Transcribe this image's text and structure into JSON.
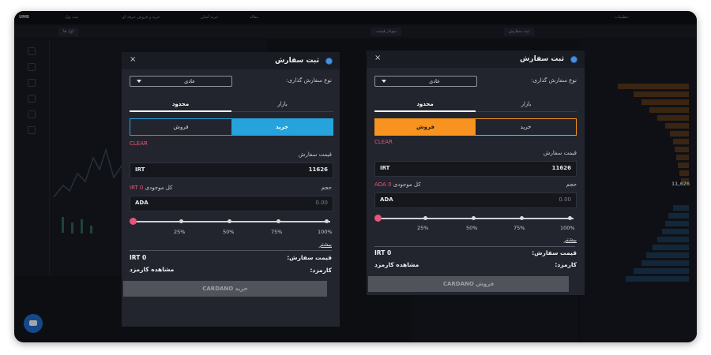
{
  "background": {
    "topbar": {
      "brand": "UMB",
      "items": [
        "ثبت پول",
        "خرید و فروش حرفه ای",
        "خرید آسان",
        "مقاله"
      ],
      "right": "تنظیمات"
    },
    "tab": "اول ها",
    "chart_tabs": {
      "depth": "نمودار قیمت",
      "order": "ثبت سفارش"
    },
    "price": "11,626",
    "colors": {
      "ask": "#e08a25",
      "bid": "#2b8fd6"
    }
  },
  "sell_modal": {
    "title": "ثبت سفارش",
    "close": "×",
    "order_type_label": "نوع سفارش گذاری:",
    "order_type_value": "عادی",
    "tabs": {
      "market": "بازار",
      "limit": "محدود"
    },
    "sides": {
      "buy": "خرید",
      "sell": "فروش"
    },
    "active_side": "sell",
    "accent": "#f7931e",
    "clear": "CLEAR",
    "price_label": "قیمت سفارش",
    "price_unit": "IRT",
    "price_value": "11626",
    "balance_label": "کل موجودی",
    "balance_value": "ADA 0",
    "volume_label": "حجم",
    "volume_unit": "ADA",
    "volume_placeholder": "0.00",
    "slider_percent": 0,
    "percents": [
      "25%",
      "50%",
      "75%",
      "100%"
    ],
    "more": "بیشتر",
    "summary_price_label": "قیمت سفارش:",
    "summary_price_value": "IRT 0",
    "fee_label": "کارمزد:",
    "fee_value": "مشاهده کارمزد",
    "submit": "فروش CARDANO"
  },
  "buy_modal": {
    "title": "ثبت سفارش",
    "close": "×",
    "order_type_label": "نوع سفارش گذاری:",
    "order_type_value": "عادی",
    "tabs": {
      "market": "بازار",
      "limit": "محدود"
    },
    "sides": {
      "buy": "خرید",
      "sell": "فروش"
    },
    "active_side": "buy",
    "accent": "#26a3dc",
    "clear": "CLEAR",
    "price_label": "قیمت سفارش",
    "price_unit": "IRT",
    "price_value": "11626",
    "balance_label": "کل موجودی",
    "balance_value": "IRT 0",
    "volume_label": "حجم",
    "volume_unit": "ADA",
    "volume_placeholder": "0.00",
    "slider_percent": 0,
    "percents": [
      "25%",
      "50%",
      "75%",
      "100%"
    ],
    "more": "بیشتر",
    "summary_price_label": "قیمت سفارش:",
    "summary_price_value": "IRT 0",
    "fee_label": "کارمزد:",
    "fee_value": "مشاهده کارمزد",
    "submit": "خرید CARDANO"
  }
}
